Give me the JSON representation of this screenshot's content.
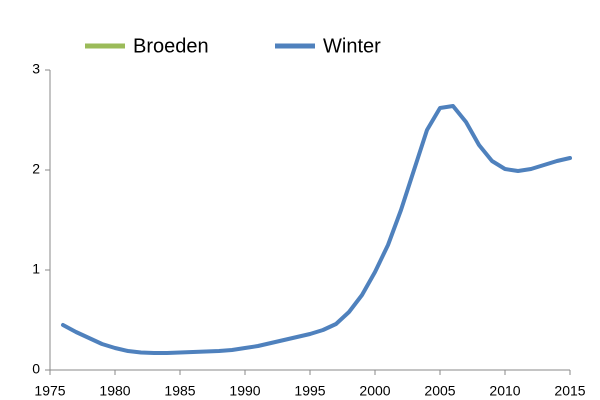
{
  "chart_data": {
    "type": "line",
    "x": [
      1976,
      1977,
      1978,
      1979,
      1980,
      1981,
      1982,
      1983,
      1984,
      1985,
      1986,
      1987,
      1988,
      1989,
      1990,
      1991,
      1992,
      1993,
      1994,
      1995,
      1996,
      1997,
      1998,
      1999,
      2000,
      2001,
      2002,
      2003,
      2004,
      2005,
      2006,
      2007,
      2008,
      2009,
      2010,
      2011,
      2012,
      2013,
      2014,
      2015
    ],
    "series": [
      {
        "name": "Broeden",
        "color": "#9bbb59",
        "values": [
          null,
          null,
          null,
          null,
          null,
          null,
          null,
          null,
          null,
          null,
          null,
          null,
          null,
          null,
          null,
          null,
          null,
          null,
          null,
          null,
          null,
          null,
          null,
          null,
          null,
          null,
          null,
          null,
          null,
          null,
          null,
          null,
          null,
          null,
          null,
          null,
          null,
          null,
          null,
          null
        ]
      },
      {
        "name": "Winter",
        "color": "#4f81bd",
        "values": [
          0.45,
          0.38,
          0.32,
          0.26,
          0.22,
          0.19,
          0.175,
          0.17,
          0.17,
          0.175,
          0.18,
          0.185,
          0.19,
          0.2,
          0.22,
          0.24,
          0.27,
          0.3,
          0.33,
          0.36,
          0.4,
          0.46,
          0.58,
          0.75,
          0.98,
          1.25,
          1.6,
          2.0,
          2.4,
          2.62,
          2.64,
          2.48,
          2.25,
          2.09,
          2.01,
          1.99,
          2.01,
          2.05,
          2.09,
          2.12
        ]
      }
    ],
    "xlim": [
      1975,
      2015
    ],
    "xticks": [
      1975,
      1980,
      1985,
      1990,
      1995,
      2000,
      2005,
      2010,
      2015
    ],
    "ylim": [
      0,
      3
    ],
    "yticks": [
      0,
      1,
      2,
      3
    ],
    "grid": false
  }
}
